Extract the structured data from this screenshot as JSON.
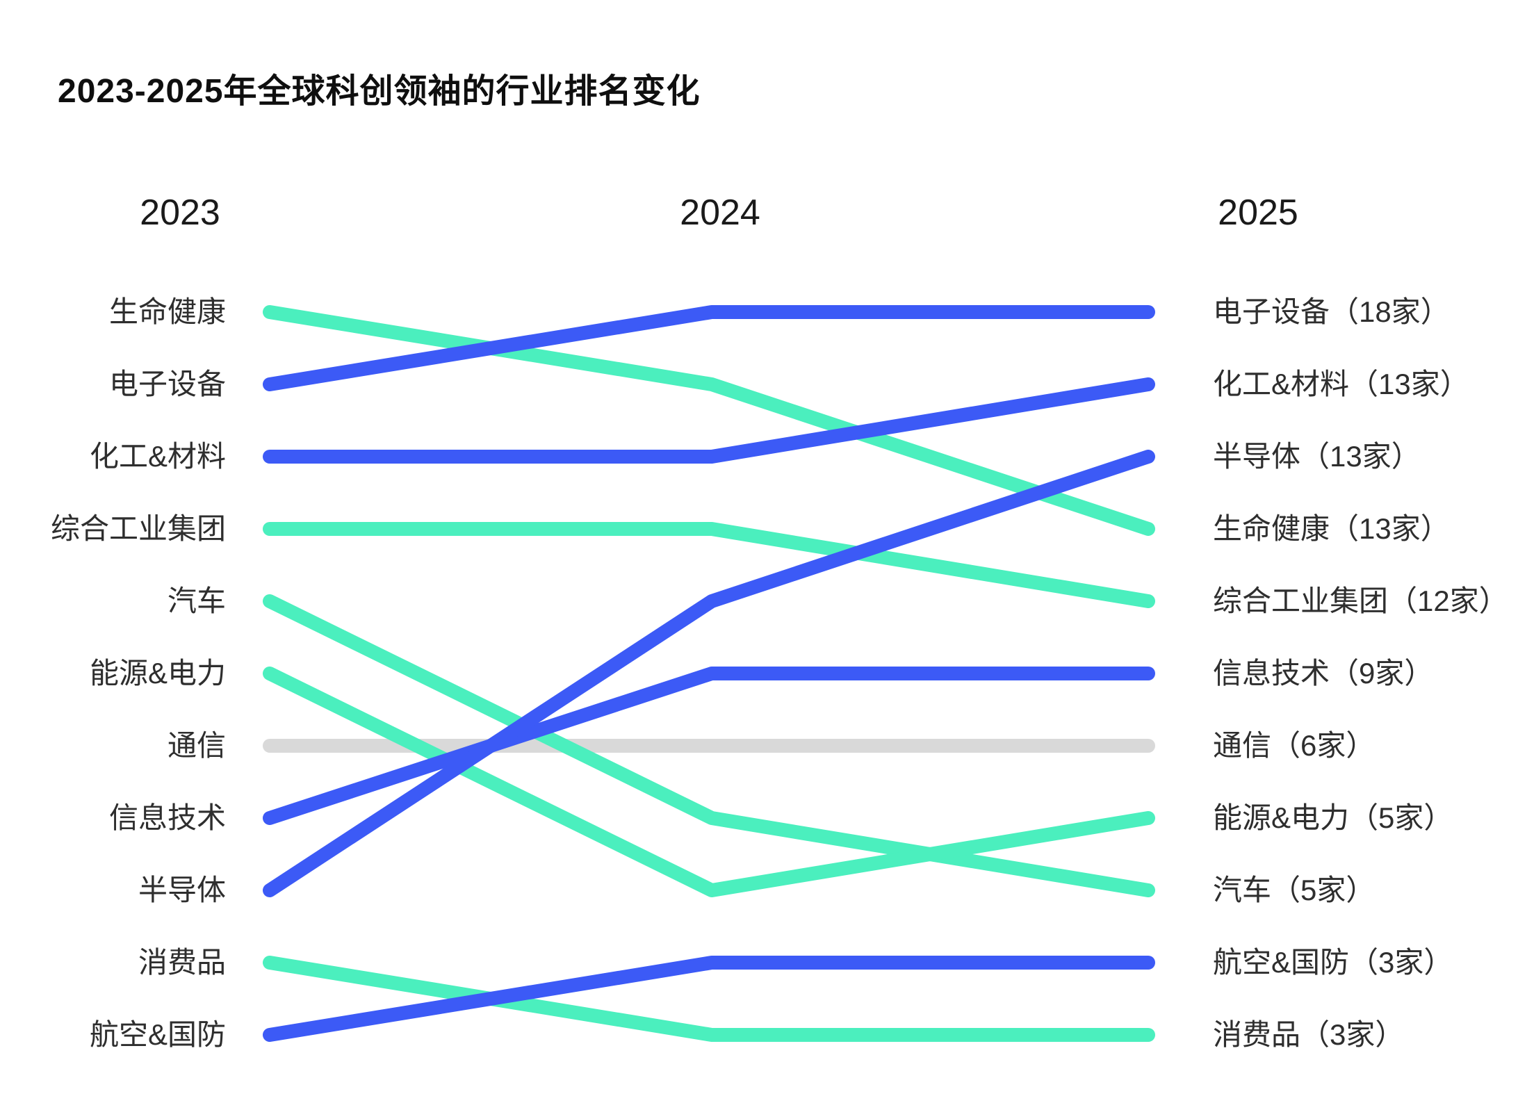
{
  "chart_data": {
    "type": "bump",
    "title": "2023-2025年全球科创领袖的行业排名变化",
    "x": [
      "2023",
      "2024",
      "2025"
    ],
    "y_encoding": "industry rank, 1 = top row",
    "rank_range": [
      1,
      11
    ],
    "grid": "off",
    "legend": "none",
    "unit_suffix": "家",
    "colors": {
      "blue": "#3C5AF6",
      "green": "#4BEFBE",
      "gray": "#D9D9D9"
    },
    "series": [
      {
        "slug": "life-health",
        "name": "生命健康",
        "color": "green",
        "ranks": [
          1,
          2,
          4
        ],
        "count_2025": 13,
        "label_2023": "生命健康",
        "label_2025": "生命健康（13家）"
      },
      {
        "slug": "electronic-equipment",
        "name": "电子设备",
        "color": "blue",
        "ranks": [
          2,
          1,
          1
        ],
        "count_2025": 18,
        "label_2023": "电子设备",
        "label_2025": "电子设备（18家）"
      },
      {
        "slug": "chemicals-materials",
        "name": "化工&材料",
        "color": "blue",
        "ranks": [
          3,
          3,
          2
        ],
        "count_2025": 13,
        "label_2023": "化工&材料",
        "label_2025": "化工&材料（13家）"
      },
      {
        "slug": "industrial-conglomerate",
        "name": "综合工业集团",
        "color": "green",
        "ranks": [
          4,
          4,
          5
        ],
        "count_2025": 12,
        "label_2023": "综合工业集团",
        "label_2025": "综合工业集团（12家）"
      },
      {
        "slug": "automotive",
        "name": "汽车",
        "color": "green",
        "ranks": [
          5,
          8,
          9
        ],
        "count_2025": 5,
        "label_2023": "汽车",
        "label_2025": "汽车（5家）"
      },
      {
        "slug": "energy-power",
        "name": "能源&电力",
        "color": "green",
        "ranks": [
          6,
          9,
          8
        ],
        "count_2025": 5,
        "label_2023": "能源&电力",
        "label_2025": "能源&电力（5家）"
      },
      {
        "slug": "telecom",
        "name": "通信",
        "color": "gray",
        "ranks": [
          7,
          7,
          7
        ],
        "count_2025": 6,
        "label_2023": "通信",
        "label_2025": "通信（6家）"
      },
      {
        "slug": "information-technology",
        "name": "信息技术",
        "color": "blue",
        "ranks": [
          8,
          6,
          6
        ],
        "count_2025": 9,
        "label_2023": "信息技术",
        "label_2025": "信息技术（9家）"
      },
      {
        "slug": "semiconductor",
        "name": "半导体",
        "color": "blue",
        "ranks": [
          9,
          5,
          3
        ],
        "count_2025": 13,
        "label_2023": "半导体",
        "label_2025": "半导体（13家）"
      },
      {
        "slug": "consumer-goods",
        "name": "消费品",
        "color": "green",
        "ranks": [
          10,
          11,
          11
        ],
        "count_2025": 3,
        "label_2023": "消费品",
        "label_2025": "消费品（3家）"
      },
      {
        "slug": "aerospace-defense",
        "name": "航空&国防",
        "color": "blue",
        "ranks": [
          11,
          10,
          10
        ],
        "count_2025": 3,
        "label_2023": "航空&国防",
        "label_2025": "航空&国防（3家）"
      }
    ]
  }
}
